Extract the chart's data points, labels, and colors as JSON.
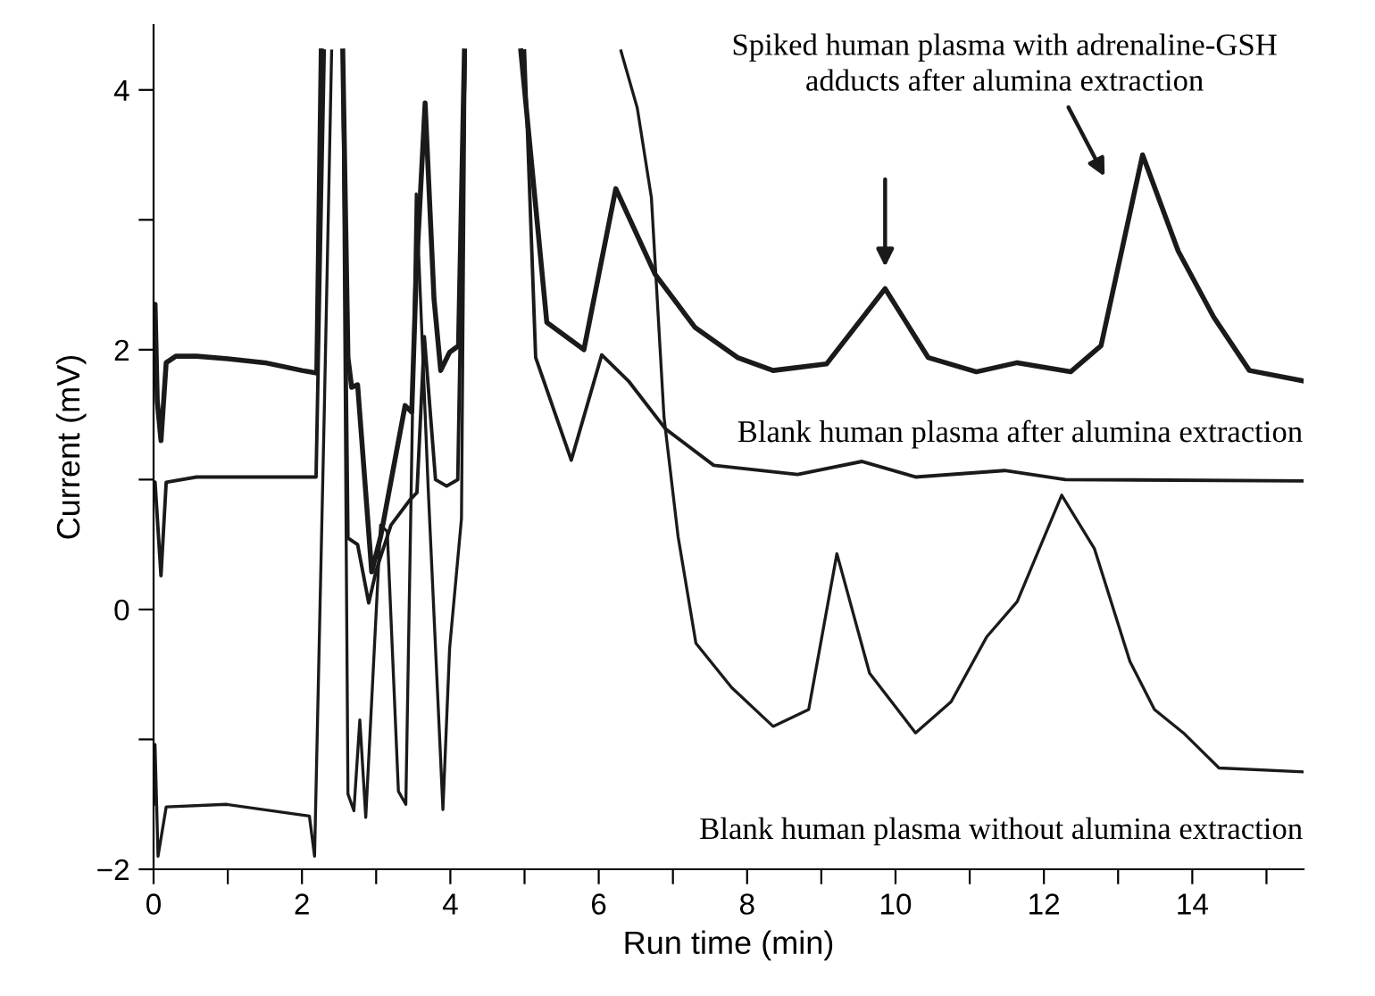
{
  "chart_data": {
    "type": "line",
    "xlabel": "Run time (min)",
    "ylabel": "Current (mV)",
    "xlim": [
      0,
      15.5
    ],
    "ylim": [
      -2,
      4.5
    ],
    "xticks": [
      0,
      {
        "value": 1,
        "label": null
      },
      2,
      {
        "value": 3,
        "label": null
      },
      4,
      {
        "value": 5,
        "label": null
      },
      6,
      {
        "value": 7,
        "label": null
      },
      8,
      {
        "value": 9,
        "label": null
      },
      10,
      {
        "value": 11,
        "label": null
      },
      12,
      {
        "value": 13,
        "label": null
      },
      14,
      {
        "value": 15,
        "label": null
      }
    ],
    "yticks": [
      -2,
      {
        "value": -1,
        "label": null
      },
      0,
      {
        "value": 1,
        "label": null
      },
      2,
      {
        "value": 3,
        "label": null
      },
      4
    ],
    "annotations": [
      "Spiked human plasma with adrenaline-GSH\nadducts after alumina extraction"
    ],
    "grid": false,
    "legend": false,
    "marker": "none",
    "line_style": "solid",
    "series": [
      {
        "color": "#1a1a1a",
        "x": [
          0.0,
          0.02,
          0.05,
          0.1,
          0.17,
          0.3,
          0.58,
          1.0,
          1.5,
          2.0,
          2.2,
          2.26,
          2.4,
          2.55,
          2.62,
          2.67,
          2.75,
          2.94,
          3.06,
          3.39,
          3.48,
          3.54,
          3.66,
          3.78,
          3.87,
          3.99,
          4.11,
          4.19,
          4.6,
          4.95,
          5.3,
          5.8,
          6.23,
          6.76,
          7.3,
          7.87,
          8.35,
          9.07,
          9.86,
          10.44,
          11.09,
          11.64,
          12.36,
          12.77,
          13.33,
          13.81,
          14.29,
          14.77,
          15.49
        ],
        "values": [
          1.9,
          2.35,
          1.6,
          1.3,
          1.9,
          1.95,
          1.95,
          1.93,
          1.9,
          1.84,
          1.82,
          4.3,
          null,
          4.3,
          1.94,
          1.71,
          1.73,
          0.29,
          0.56,
          1.57,
          1.52,
          2.58,
          3.9,
          2.39,
          1.84,
          1.98,
          2.03,
          4.3,
          null,
          4.3,
          2.21,
          2.0,
          3.24,
          2.58,
          2.17,
          1.94,
          1.84,
          1.89,
          2.47,
          1.94,
          1.83,
          1.9,
          1.83,
          2.03,
          3.5,
          2.76,
          2.25,
          1.84,
          1.76
        ]
      },
      {
        "name": "Blank human plasma after alumina extraction",
        "color": "#1a1a1a",
        "x": [
          0.0,
          0.02,
          0.1,
          0.17,
          0.58,
          1.2,
          2.19,
          2.3,
          2.45,
          2.55,
          2.62,
          2.75,
          2.9,
          3.0,
          3.2,
          3.45,
          3.55,
          3.65,
          3.8,
          3.95,
          4.1,
          4.2,
          4.6,
          5.0,
          5.15,
          5.63,
          6.04,
          6.4,
          6.9,
          7.55,
          8.68,
          9.55,
          10.27,
          11.47,
          12.29,
          15.49
        ],
        "values": [
          0.98,
          0.98,
          0.26,
          0.98,
          1.02,
          1.02,
          1.02,
          4.3,
          null,
          4.3,
          0.55,
          0.5,
          0.05,
          0.3,
          0.65,
          0.84,
          0.9,
          2.1,
          1.0,
          0.95,
          1.0,
          4.3,
          null,
          4.3,
          1.94,
          1.15,
          1.96,
          1.76,
          1.39,
          1.11,
          1.04,
          1.14,
          1.02,
          1.07,
          1.0,
          0.99
        ]
      },
      {
        "name": "Blank human plasma without alumina extraction",
        "color": "#1a1a1a",
        "x": [
          0.0,
          0.02,
          0.06,
          0.17,
          0.98,
          2.1,
          2.17,
          2.3,
          2.4,
          2.48,
          2.55,
          2.62,
          2.7,
          2.78,
          2.86,
          3.06,
          3.15,
          3.3,
          3.4,
          3.54,
          3.7,
          3.9,
          3.99,
          4.15,
          4.2,
          5.2,
          6.3,
          6.52,
          6.71,
          6.88,
          7.07,
          7.31,
          7.79,
          8.35,
          8.83,
          9.21,
          9.65,
          10.27,
          10.75,
          11.23,
          11.64,
          12.24,
          12.68,
          13.16,
          13.49,
          13.88,
          14.36,
          15.49
        ],
        "values": [
          -1.5,
          -1.04,
          -1.9,
          -1.52,
          -1.5,
          -1.59,
          -1.9,
          1.5,
          4.3,
          null,
          4.3,
          -1.42,
          -1.55,
          -0.85,
          -1.6,
          0.65,
          0.6,
          -1.4,
          -1.5,
          3.2,
          0.95,
          -1.54,
          -0.3,
          0.7,
          4.3,
          null,
          4.3,
          3.86,
          3.17,
          1.48,
          0.56,
          -0.26,
          -0.6,
          -0.9,
          -0.77,
          0.43,
          -0.49,
          -0.95,
          -0.71,
          -0.21,
          0.06,
          0.88,
          0.47,
          -0.4,
          -0.77,
          -0.95,
          -1.22,
          -1.25
        ]
      }
    ]
  }
}
